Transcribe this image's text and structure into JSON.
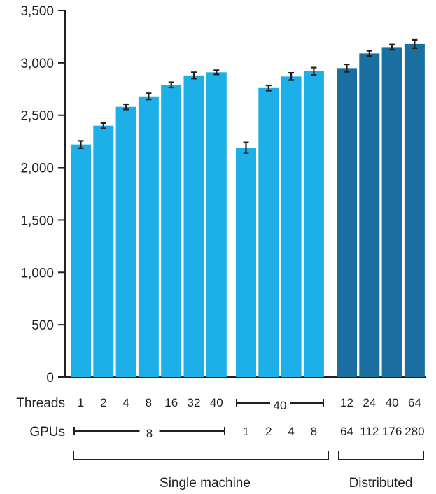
{
  "chart_data": {
    "type": "bar",
    "ylim": [
      0,
      3500
    ],
    "yticks": [
      0,
      500,
      1000,
      1500,
      2000,
      2500,
      3000,
      3500
    ],
    "ytick_labels": [
      "0",
      "500",
      "1,000",
      "1,500",
      "2,000",
      "2,500",
      "3,000",
      "3,500"
    ],
    "grid": false,
    "row_labels": {
      "threads": "Threads",
      "gpus": "GPUs"
    },
    "groups": [
      {
        "name": "group-1",
        "color": "#1db0e8",
        "threads": [
          "1",
          "2",
          "4",
          "8",
          "16",
          "32",
          "40"
        ],
        "gpus_span": "8",
        "gpus": [],
        "threads_span": "",
        "values": [
          2220,
          2400,
          2580,
          2680,
          2790,
          2880,
          2910
        ],
        "errors": [
          35,
          25,
          25,
          30,
          25,
          30,
          20
        ]
      },
      {
        "name": "group-2",
        "color": "#1db0e8",
        "threads": [],
        "threads_span": "40",
        "gpus_span": "",
        "gpus": [
          "1",
          "2",
          "4",
          "8"
        ],
        "values": [
          2190,
          2760,
          2870,
          2920
        ],
        "errors": [
          50,
          25,
          35,
          35
        ]
      },
      {
        "name": "group-3",
        "color": "#1a6fa0",
        "threads": [
          "12",
          "24",
          "40",
          "64"
        ],
        "threads_span": "",
        "gpus_span": "",
        "gpus": [
          "64",
          "112",
          "176",
          "280"
        ],
        "values": [
          2950,
          3090,
          3150,
          3180
        ],
        "errors": [
          35,
          25,
          25,
          40
        ]
      }
    ],
    "bottom_labels": [
      "Single machine",
      "Distributed"
    ]
  }
}
